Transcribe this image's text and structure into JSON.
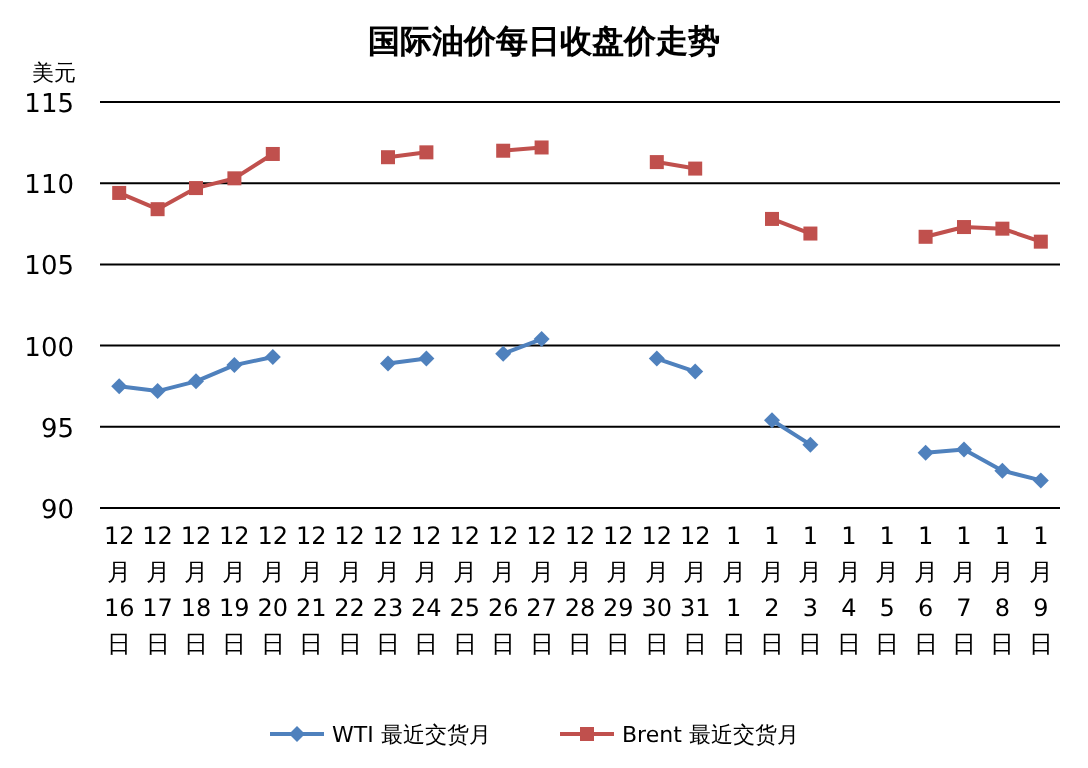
{
  "chart_data": {
    "type": "line",
    "title": "国际油价每日收盘价走势",
    "ylabel": "美元",
    "categories": [
      "12月16日",
      "12月17日",
      "12月18日",
      "12月19日",
      "12月20日",
      "12月21日",
      "12月22日",
      "12月23日",
      "12月24日",
      "12月25日",
      "12月26日",
      "12月27日",
      "12月28日",
      "12月29日",
      "12月30日",
      "12月31日",
      "1月1日",
      "1月2日",
      "1月3日",
      "1月4日",
      "1月5日",
      "1月6日",
      "1月7日",
      "1月8日",
      "1月9日"
    ],
    "series": [
      {
        "name": "WTI 最近交货月",
        "color": "#4f81bd",
        "marker": "diamond",
        "values": [
          97.5,
          97.2,
          97.8,
          98.8,
          99.3,
          null,
          null,
          98.9,
          99.2,
          null,
          99.5,
          100.4,
          null,
          null,
          99.2,
          98.4,
          null,
          95.4,
          93.9,
          null,
          null,
          93.4,
          93.6,
          92.3,
          91.7
        ]
      },
      {
        "name": "Brent 最近交货月",
        "color": "#c0504d",
        "marker": "square",
        "values": [
          109.4,
          108.4,
          109.7,
          110.3,
          111.8,
          null,
          null,
          111.6,
          111.9,
          null,
          112.0,
          112.2,
          null,
          null,
          111.3,
          110.9,
          null,
          107.8,
          106.9,
          null,
          null,
          106.7,
          107.3,
          107.2,
          106.4
        ]
      }
    ],
    "ylim": [
      90,
      115
    ],
    "yticks": [
      90,
      95,
      100,
      105,
      110,
      115
    ],
    "grid": "y",
    "legend": "bottom"
  }
}
